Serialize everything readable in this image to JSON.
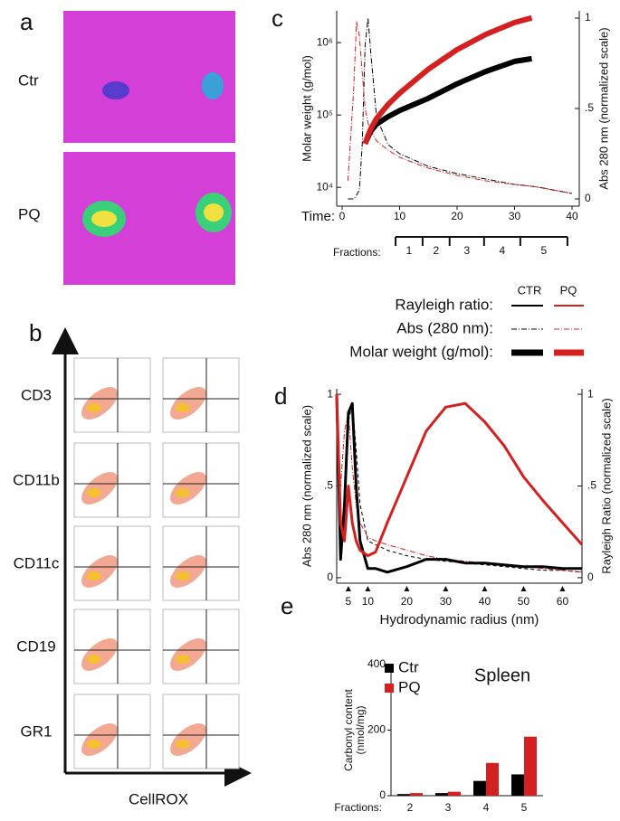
{
  "panels": {
    "a": {
      "label": "a",
      "rows": [
        "Ctr",
        "PQ"
      ]
    },
    "b": {
      "label": "b",
      "rows": [
        "CD3",
        "CD11b",
        "CD11c",
        "CD19",
        "GR1"
      ],
      "xlabel": "CellROX"
    },
    "c": {
      "label": "c"
    },
    "d": {
      "label": "d"
    },
    "e": {
      "label": "e"
    }
  },
  "legend": {
    "columns": [
      "CTR",
      "PQ"
    ],
    "rows": [
      "Rayleigh ratio:",
      "Abs (280 nm):",
      "Molar weight (g/mol):"
    ]
  },
  "chart_data": [
    {
      "type": "line",
      "xlabel": "Time:",
      "ylabel": "Molar weight (g/mol)",
      "y2label": "Abs 280 nm (normalized scale)",
      "x": [
        1,
        2,
        2.5,
        3,
        3.5,
        4,
        4.5,
        5,
        6,
        8,
        10,
        15,
        20,
        25,
        30,
        33,
        35,
        40
      ],
      "xlim": [
        0,
        40
      ],
      "xticks": [
        0,
        10,
        20,
        30,
        40
      ],
      "ylog": true,
      "ylim": [
        5500,
        2750000
      ],
      "yticks": [
        {
          "value": 10000,
          "label": "10⁴"
        },
        {
          "value": 100000,
          "label": "10⁵"
        },
        {
          "value": 1000000,
          "label": "10⁶"
        }
      ],
      "y2lim": [
        -0.04,
        1.04
      ],
      "y2ticks": [
        0,
        {
          "value": 0.5,
          "label": ".5"
        },
        1
      ],
      "fractions": {
        "label": "Fractions:",
        "names": [
          "1",
          "2",
          "3",
          "4",
          "5"
        ],
        "edges": [
          9.3,
          14,
          18.7,
          24.7,
          31,
          39.2
        ]
      },
      "series": [
        {
          "color": "#000000",
          "dash": "6 2 1 2",
          "width": 1,
          "axis": "y2",
          "values": [
            0,
            0,
            0.02,
            0.05,
            0.3,
            0.85,
            1,
            0.8,
            0.45,
            0.3,
            0.25,
            0.18,
            0.14,
            0.11,
            0.08,
            0.07,
            0.06,
            0.03
          ]
        },
        {
          "color": "#d42020",
          "dash": "6 2 1 2",
          "width": 1,
          "axis": "y2",
          "values": [
            0.1,
            0.6,
            0.98,
            0.9,
            0.7,
            0.5,
            0.42,
            0.38,
            0.32,
            0.27,
            0.23,
            0.17,
            0.13,
            0.1,
            0.08,
            0.07,
            0.06,
            0.03
          ]
        },
        {
          "color": "#000000",
          "width": 6,
          "values": [
            null,
            null,
            null,
            null,
            null,
            40000,
            50000,
            60000,
            75000,
            95000,
            115000,
            170000,
            270000,
            400000,
            550000,
            600000,
            null,
            null
          ]
        },
        {
          "color": "#d42020",
          "width": 6,
          "values": [
            null,
            null,
            null,
            null,
            null,
            40000,
            52000,
            65000,
            90000,
            140000,
            200000,
            430000,
            800000,
            1300000,
            1900000,
            2200000,
            null,
            null
          ]
        }
      ]
    },
    {
      "type": "line",
      "xlabel": "Hydrodynamic radius (nm)",
      "ylabel": "Abs 280 nm (normalized scale)",
      "y2label": "Rayleigh Ratio (normalized scale)",
      "x": [
        2,
        3,
        4,
        5,
        6,
        7,
        8,
        10,
        12,
        15,
        20,
        25,
        30,
        35,
        40,
        45,
        50,
        55,
        60,
        65
      ],
      "xlim": [
        2,
        65
      ],
      "xticks": [
        5,
        10,
        20,
        30,
        40,
        50,
        60
      ],
      "ylim": [
        -0.03,
        1.03
      ],
      "yticks": [
        0,
        {
          "value": 0.5,
          "label": ".5"
        },
        1
      ],
      "y2lim": [
        -0.03,
        1.03
      ],
      "y2ticks": [
        0,
        {
          "value": 0.5,
          "label": ".5"
        },
        1
      ],
      "series": [
        {
          "color": "#000000",
          "dash": "4 3",
          "width": 1,
          "values": [
            1,
            0.1,
            0.3,
            0.85,
            0.95,
            0.7,
            0.4,
            0.2,
            0.18,
            0.15,
            0.12,
            0.1,
            0.09,
            0.08,
            0.07,
            0.06,
            0.05,
            0.04,
            0.04,
            0.03
          ]
        },
        {
          "color": "#d42020",
          "dash": "6 2 1 2",
          "width": 1,
          "values": [
            0.95,
            0.5,
            0.8,
            0.9,
            0.6,
            0.4,
            0.3,
            0.22,
            0.2,
            0.18,
            0.15,
            0.12,
            0.1,
            0.09,
            0.08,
            0.07,
            0.06,
            0.05,
            0.04,
            0.03
          ]
        },
        {
          "color": "#000000",
          "width": 3,
          "axis": "y2",
          "values": [
            1,
            0.1,
            0.4,
            0.9,
            0.95,
            0.5,
            0.2,
            0.05,
            0.05,
            0.03,
            0.06,
            0.1,
            0.1,
            0.08,
            0.08,
            0.07,
            0.06,
            0.06,
            0.05,
            0.05
          ]
        },
        {
          "color": "#d42020",
          "width": 3,
          "axis": "y2",
          "values": [
            1,
            0.3,
            0.2,
            0.5,
            0.3,
            0.2,
            0.15,
            0.12,
            0.14,
            0.3,
            0.55,
            0.8,
            0.93,
            0.95,
            0.85,
            0.72,
            0.55,
            0.42,
            0.3,
            0.18
          ]
        }
      ]
    },
    {
      "type": "bar",
      "title": "Spleen",
      "ylabel": [
        "Carbonyl content",
        "(nmol/mg)"
      ],
      "xlabel": "Fractions:",
      "categories": [
        "2",
        "3",
        "4",
        "5"
      ],
      "ylim": [
        0,
        400
      ],
      "yticks": [
        0,
        200,
        400
      ],
      "series": [
        {
          "name": "Ctr",
          "color": "#000000",
          "values": [
            5,
            8,
            45,
            65
          ]
        },
        {
          "name": "PQ",
          "color": "#d42020",
          "values": [
            8,
            12,
            100,
            180
          ]
        }
      ]
    }
  ]
}
